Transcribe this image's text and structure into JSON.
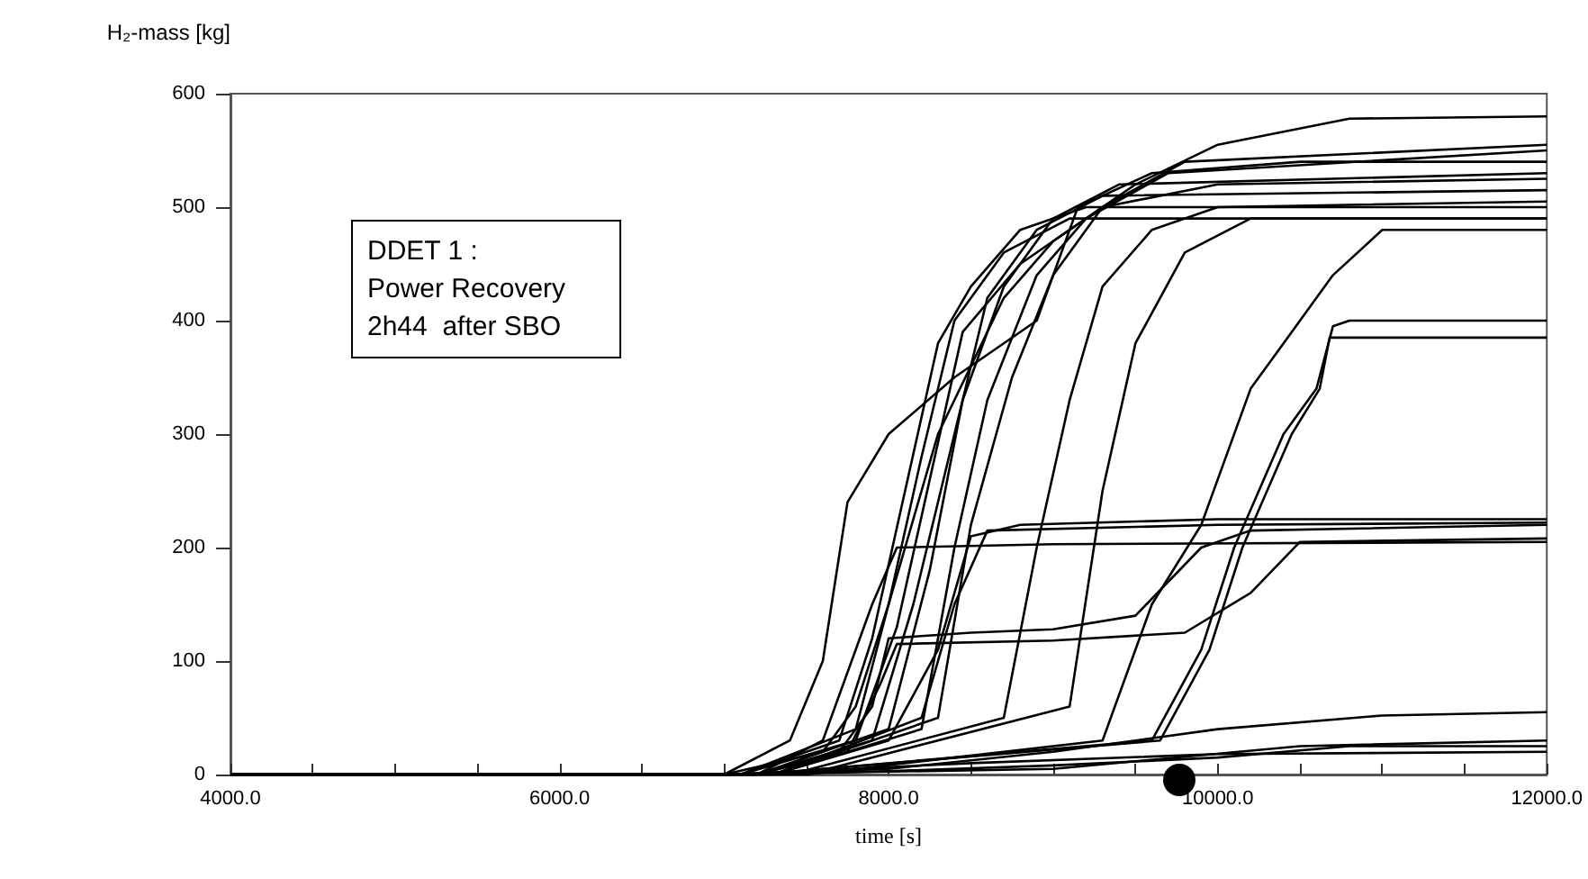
{
  "chart_data": {
    "type": "line",
    "xlabel": "time [s]",
    "ylabel": "H₂-mass [kg]",
    "annotations": [
      "DDET 1 :\nPower Recovery\n2h44  after SBO"
    ],
    "xlim": [
      4000,
      12000
    ],
    "ylim": [
      0,
      600
    ],
    "xticks": [
      {
        "value": 4000,
        "label": "4000.0"
      },
      {
        "value": 4500,
        "label": null
      },
      {
        "value": 5000,
        "label": null
      },
      {
        "value": 5500,
        "label": null
      },
      {
        "value": 6000,
        "label": "6000.0"
      },
      {
        "value": 6500,
        "label": null
      },
      {
        "value": 7000,
        "label": null
      },
      {
        "value": 7500,
        "label": null
      },
      {
        "value": 8000,
        "label": "8000.0"
      },
      {
        "value": 8500,
        "label": null
      },
      {
        "value": 9000,
        "label": null
      },
      {
        "value": 9500,
        "label": null
      },
      {
        "value": 10000,
        "label": "10000.0"
      },
      {
        "value": 10500,
        "label": null
      },
      {
        "value": 11000,
        "label": null
      },
      {
        "value": 11500,
        "label": null
      },
      {
        "value": 12000,
        "label": "12000.0"
      }
    ],
    "yticks": [
      0,
      100,
      200,
      300,
      400,
      500,
      600
    ],
    "grid": false,
    "marker": "none",
    "line_style": "solid",
    "series": [
      {
        "color": "#000000",
        "x": [
          4000,
          7000,
          7400,
          7600,
          7750,
          8000,
          8400,
          8900,
          9150,
          9600,
          10500,
          12000
        ],
        "values": [
          0,
          0,
          30,
          100,
          240,
          300,
          350,
          400,
          500,
          530,
          540,
          540
        ]
      },
      {
        "color": "#000000",
        "x": [
          4000,
          7000,
          7600,
          7800,
          8000,
          8300,
          8700,
          9000,
          9500,
          10000,
          10800,
          12000
        ],
        "values": [
          0,
          0,
          20,
          60,
          150,
          300,
          420,
          470,
          520,
          555,
          578,
          580
        ]
      },
      {
        "color": "#000000",
        "x": [
          4000,
          7100,
          7700,
          7900,
          8100,
          8300,
          8500,
          8800,
          9200,
          12000
        ],
        "values": [
          0,
          0,
          30,
          120,
          250,
          380,
          430,
          480,
          500,
          500
        ]
      },
      {
        "color": "#000000",
        "x": [
          4000,
          7100,
          7800,
          8000,
          8200,
          8400,
          8700,
          9100,
          12000
        ],
        "values": [
          0,
          0,
          40,
          150,
          280,
          400,
          460,
          490,
          490
        ]
      },
      {
        "color": "#000000",
        "x": [
          4000,
          7100,
          7800,
          8050,
          8250,
          8450,
          8800,
          9300,
          10000,
          12000
        ],
        "values": [
          0,
          0,
          30,
          130,
          260,
          390,
          450,
          500,
          520,
          525
        ]
      },
      {
        "color": "#000000",
        "x": [
          4000,
          7200,
          7900,
          8150,
          8400,
          8600,
          8900,
          9300,
          12000
        ],
        "values": [
          0,
          0,
          30,
          150,
          300,
          420,
          480,
          510,
          515
        ]
      },
      {
        "color": "#000000",
        "x": [
          4000,
          7200,
          8000,
          8250,
          8450,
          8700,
          9000,
          9400,
          12000
        ],
        "values": [
          0,
          0,
          40,
          180,
          330,
          430,
          490,
          520,
          530
        ]
      },
      {
        "color": "#000000",
        "x": [
          4000,
          7300,
          8200,
          8400,
          8600,
          8900,
          9200,
          9700,
          12000
        ],
        "values": [
          0,
          0,
          40,
          200,
          330,
          440,
          490,
          530,
          550
        ]
      },
      {
        "color": "#000000",
        "x": [
          4000,
          7300,
          8300,
          8500,
          8750,
          9000,
          9300,
          9800,
          12000
        ],
        "values": [
          0,
          0,
          50,
          220,
          350,
          440,
          500,
          540,
          555
        ]
      },
      {
        "color": "#000000",
        "x": [
          4000,
          7400,
          8700,
          8900,
          9100,
          9300,
          9600,
          10000,
          12000
        ],
        "values": [
          0,
          0,
          50,
          200,
          330,
          430,
          480,
          500,
          505
        ]
      },
      {
        "color": "#000000",
        "x": [
          4000,
          7500,
          9100,
          9300,
          9500,
          9800,
          10200,
          12000
        ],
        "values": [
          0,
          0,
          60,
          250,
          380,
          460,
          490,
          490
        ]
      },
      {
        "color": "#000000",
        "x": [
          4000,
          7500,
          9300,
          9600,
          9900,
          10000,
          10200,
          10400,
          10700,
          11000,
          12000
        ],
        "values": [
          0,
          0,
          30,
          150,
          220,
          260,
          340,
          380,
          440,
          480,
          480
        ]
      },
      {
        "color": "#000000",
        "x": [
          4000,
          7200,
          9600,
          9900,
          10100,
          10400,
          10600,
          10700,
          10800,
          12000
        ],
        "values": [
          0,
          0,
          30,
          110,
          200,
          300,
          340,
          395,
          400,
          400
        ]
      },
      {
        "color": "#000000",
        "x": [
          4000,
          7200,
          9650,
          9950,
          10150,
          10450,
          10620,
          10680,
          12000
        ],
        "values": [
          0,
          0,
          30,
          110,
          200,
          300,
          340,
          385,
          385
        ]
      },
      {
        "color": "#000000",
        "x": [
          4000,
          7200,
          7700,
          7900,
          8000,
          8500,
          9000,
          9500,
          9900,
          10200,
          12000
        ],
        "values": [
          0,
          0,
          20,
          60,
          120,
          125,
          128,
          140,
          200,
          215,
          220
        ]
      },
      {
        "color": "#000000",
        "x": [
          4000,
          7200,
          7750,
          7950,
          8050,
          9000,
          9800,
          10200,
          10500,
          12000
        ],
        "values": [
          0,
          0,
          20,
          80,
          115,
          118,
          125,
          160,
          205,
          208
        ]
      },
      {
        "color": "#000000",
        "x": [
          4000,
          7200,
          7600,
          7900,
          8050,
          9000,
          12000
        ],
        "values": [
          0,
          0,
          30,
          150,
          200,
          203,
          205
        ]
      },
      {
        "color": "#000000",
        "x": [
          4000,
          7300,
          8000,
          8300,
          8500,
          8800,
          10000,
          12000
        ],
        "values": [
          0,
          0,
          30,
          110,
          210,
          220,
          225,
          225
        ]
      },
      {
        "color": "#000000",
        "x": [
          4000,
          7300,
          8200,
          8400,
          8600,
          10000,
          12000
        ],
        "values": [
          0,
          0,
          50,
          150,
          215,
          220,
          222
        ]
      },
      {
        "color": "#000000",
        "x": [
          4000,
          7000,
          8000,
          9000,
          10000,
          11000,
          12000
        ],
        "values": [
          0,
          0,
          5,
          20,
          40,
          52,
          55
        ]
      },
      {
        "color": "#000000",
        "x": [
          4000,
          7000,
          8000,
          9000,
          10000,
          10800,
          12000
        ],
        "values": [
          0,
          0,
          3,
          8,
          15,
          25,
          25
        ]
      },
      {
        "color": "#000000",
        "x": [
          4000,
          7000,
          8500,
          10000,
          12000
        ],
        "values": [
          0,
          0,
          10,
          18,
          20
        ]
      },
      {
        "color": "#000000",
        "x": [
          4000,
          7000,
          9000,
          10500,
          12000
        ],
        "values": [
          0,
          0,
          5,
          25,
          30
        ]
      }
    ]
  }
}
